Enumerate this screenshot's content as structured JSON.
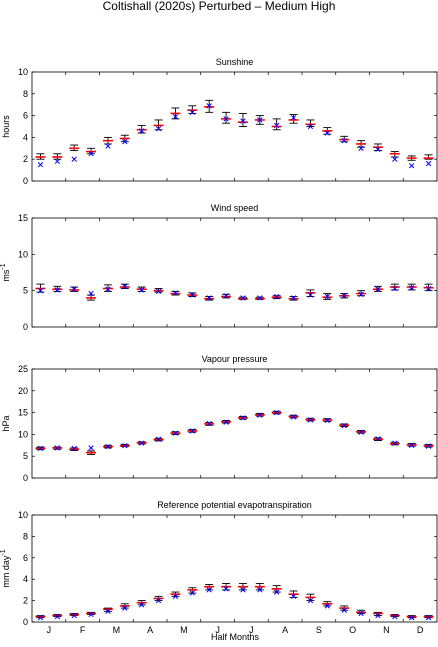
{
  "figure": {
    "title": "Coltishall (2020s) Perturbed – Medium High",
    "xlabel": "Half Months",
    "month_labels": [
      "J",
      "F",
      "M",
      "A",
      "M",
      "J",
      "J",
      "A",
      "S",
      "O",
      "N",
      "D"
    ]
  },
  "colors": {
    "observed_marker": "#0000ff",
    "median_bar": "#ff0000",
    "range_whisker": "#000000"
  },
  "chart_data": [
    {
      "type": "scatter",
      "title": "Sunshine",
      "ylabel": "hours",
      "ylim": [
        0,
        10
      ],
      "yticks": [
        0,
        2,
        4,
        6,
        8,
        10
      ],
      "x": [
        1,
        2,
        3,
        4,
        5,
        6,
        7,
        8,
        9,
        10,
        11,
        12,
        13,
        14,
        15,
        16,
        17,
        18,
        19,
        20,
        21,
        22,
        23,
        24
      ],
      "series": [
        {
          "name": "",
          "marker": "x",
          "values": [
            1.5,
            1.8,
            2.0,
            2.5,
            3.2,
            3.6,
            4.6,
            4.8,
            5.9,
            6.3,
            6.9,
            5.7,
            5.5,
            5.6,
            5.1,
            5.8,
            5.0,
            4.4,
            3.7,
            3.0,
            2.9,
            2.0,
            1.4,
            1.6
          ]
        },
        {
          "name": "",
          "marker": "median",
          "values": [
            2.2,
            2.2,
            3.0,
            2.7,
            3.7,
            3.9,
            4.7,
            5.1,
            6.2,
            6.5,
            6.8,
            5.7,
            5.4,
            5.6,
            5.0,
            5.6,
            5.2,
            4.6,
            3.8,
            3.4,
            3.1,
            2.5,
            2.1,
            2.1
          ]
        },
        {
          "name": "",
          "marker": "range",
          "low": [
            2.0,
            2.0,
            2.8,
            2.5,
            3.4,
            3.6,
            4.4,
            4.7,
            5.7,
            6.2,
            6.3,
            5.3,
            5.0,
            5.2,
            4.7,
            5.3,
            5.0,
            4.3,
            3.6,
            3.1,
            2.8,
            2.2,
            1.9,
            2.0
          ],
          "high": [
            2.5,
            2.5,
            3.3,
            3.0,
            4.0,
            4.2,
            5.1,
            5.6,
            6.7,
            6.9,
            7.4,
            6.3,
            6.2,
            6.0,
            5.7,
            6.1,
            5.6,
            4.9,
            4.1,
            3.7,
            3.4,
            2.7,
            2.3,
            2.4
          ]
        }
      ]
    },
    {
      "type": "scatter",
      "title": "Wind speed",
      "ylabel": "ms",
      "ylabel_exp": "-1",
      "ylim": [
        0,
        15
      ],
      "yticks": [
        0,
        5,
        10,
        15
      ],
      "x": [
        1,
        2,
        3,
        4,
        5,
        6,
        7,
        8,
        9,
        10,
        11,
        12,
        13,
        14,
        15,
        16,
        17,
        18,
        19,
        20,
        21,
        22,
        23,
        24
      ],
      "series": [
        {
          "name": "",
          "marker": "x",
          "values": [
            5.0,
            5.1,
            5.2,
            4.6,
            5.2,
            5.6,
            5.1,
            4.9,
            4.7,
            4.4,
            4.0,
            4.3,
            4.0,
            4.0,
            4.2,
            4.0,
            4.4,
            4.2,
            4.3,
            4.5,
            5.2,
            5.3,
            5.4,
            5.3
          ]
        },
        {
          "name": "",
          "marker": "median",
          "values": [
            5.3,
            5.2,
            5.1,
            4.0,
            5.3,
            5.5,
            5.2,
            5.0,
            4.6,
            4.4,
            3.9,
            4.2,
            3.9,
            3.9,
            4.1,
            3.9,
            4.7,
            4.1,
            4.3,
            4.6,
            5.2,
            5.5,
            5.5,
            5.4
          ]
        },
        {
          "name": "",
          "marker": "range",
          "low": [
            4.8,
            4.9,
            4.9,
            3.7,
            4.9,
            5.3,
            4.9,
            4.8,
            4.4,
            4.2,
            3.7,
            4.0,
            3.8,
            3.8,
            3.9,
            3.7,
            4.2,
            3.8,
            4.0,
            4.3,
            4.9,
            5.1,
            5.1,
            5.0
          ],
          "high": [
            5.9,
            5.6,
            5.5,
            4.4,
            5.8,
            5.9,
            5.5,
            5.3,
            4.9,
            4.7,
            4.2,
            4.5,
            4.1,
            4.1,
            4.3,
            4.2,
            5.1,
            4.6,
            4.6,
            5.0,
            5.6,
            5.9,
            5.9,
            5.9
          ]
        }
      ]
    },
    {
      "type": "scatter",
      "title": "Vapour pressure",
      "ylabel": "hPa",
      "ylim": [
        0,
        25
      ],
      "yticks": [
        0,
        5,
        10,
        15,
        20,
        25
      ],
      "x": [
        1,
        2,
        3,
        4,
        5,
        6,
        7,
        8,
        9,
        10,
        11,
        12,
        13,
        14,
        15,
        16,
        17,
        18,
        19,
        20,
        21,
        22,
        23,
        24
      ],
      "series": [
        {
          "name": "",
          "marker": "x",
          "values": [
            6.8,
            6.9,
            6.8,
            6.9,
            7.2,
            7.4,
            8.0,
            8.9,
            10.3,
            10.8,
            12.5,
            12.8,
            13.8,
            14.4,
            15.0,
            14.0,
            13.3,
            13.2,
            12.0,
            10.5,
            9.0,
            8.0,
            7.5,
            7.3
          ]
        },
        {
          "name": "",
          "marker": "median",
          "values": [
            6.8,
            6.9,
            6.6,
            5.8,
            7.2,
            7.4,
            8.1,
            8.8,
            10.3,
            10.8,
            12.4,
            12.9,
            13.8,
            14.5,
            15.0,
            14.1,
            13.4,
            13.3,
            12.1,
            10.6,
            8.9,
            7.9,
            7.6,
            7.4
          ]
        },
        {
          "name": "",
          "marker": "range",
          "low": [
            6.5,
            6.6,
            6.3,
            5.4,
            6.9,
            7.2,
            7.8,
            8.5,
            10.0,
            10.5,
            12.1,
            12.6,
            13.5,
            14.2,
            14.7,
            13.8,
            13.1,
            13.0,
            11.8,
            10.3,
            8.6,
            7.6,
            7.3,
            7.1
          ],
          "high": [
            7.1,
            7.1,
            6.9,
            6.2,
            7.5,
            7.7,
            8.3,
            9.1,
            10.6,
            11.1,
            12.7,
            13.2,
            14.1,
            14.8,
            15.3,
            14.4,
            13.7,
            13.6,
            12.4,
            10.9,
            9.2,
            8.2,
            7.9,
            7.7
          ]
        }
      ]
    },
    {
      "type": "scatter",
      "title": "Reference potential evapotranspiration",
      "ylabel": "mm day",
      "ylabel_exp": "-1",
      "ylim": [
        0,
        10
      ],
      "yticks": [
        0,
        2,
        4,
        6,
        8,
        10
      ],
      "x": [
        1,
        2,
        3,
        4,
        5,
        6,
        7,
        8,
        9,
        10,
        11,
        12,
        13,
        14,
        15,
        16,
        17,
        18,
        19,
        20,
        21,
        22,
        23,
        24
      ],
      "series": [
        {
          "name": "",
          "marker": "x",
          "values": [
            0.4,
            0.5,
            0.6,
            0.7,
            1.0,
            1.3,
            1.6,
            2.0,
            2.4,
            2.7,
            3.0,
            3.1,
            3.0,
            3.0,
            2.8,
            2.4,
            2.0,
            1.5,
            1.1,
            0.8,
            0.6,
            0.5,
            0.4,
            0.4
          ]
        },
        {
          "name": "",
          "marker": "median",
          "values": [
            0.5,
            0.6,
            0.7,
            0.8,
            1.2,
            1.5,
            1.8,
            2.2,
            2.6,
            3.0,
            3.3,
            3.3,
            3.3,
            3.3,
            3.1,
            2.6,
            2.3,
            1.7,
            1.3,
            0.9,
            0.8,
            0.6,
            0.5,
            0.5
          ]
        },
        {
          "name": "",
          "marker": "range",
          "low": [
            0.4,
            0.5,
            0.6,
            0.7,
            1.0,
            1.3,
            1.6,
            2.0,
            2.4,
            2.7,
            3.0,
            3.0,
            3.0,
            3.0,
            2.8,
            2.3,
            2.0,
            1.5,
            1.1,
            0.8,
            0.6,
            0.5,
            0.4,
            0.4
          ],
          "high": [
            0.6,
            0.7,
            0.8,
            0.9,
            1.3,
            1.7,
            2.0,
            2.4,
            2.8,
            3.2,
            3.5,
            3.6,
            3.6,
            3.6,
            3.4,
            2.9,
            2.6,
            1.9,
            1.5,
            1.1,
            0.9,
            0.7,
            0.6,
            0.6
          ]
        }
      ]
    }
  ]
}
